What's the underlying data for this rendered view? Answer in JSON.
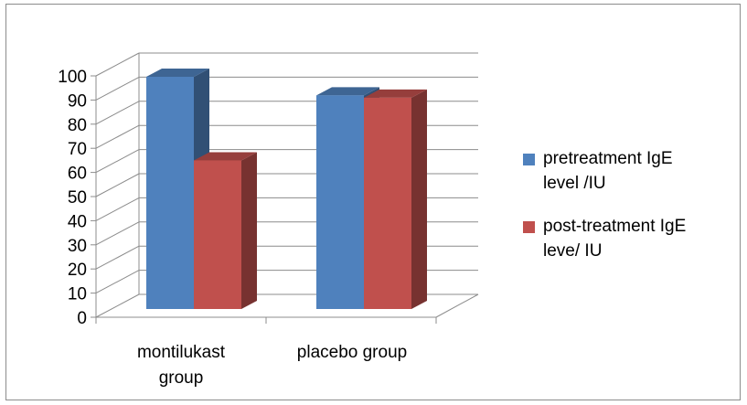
{
  "chart_data": {
    "type": "bar",
    "style": "3d-clustered-column",
    "categories": [
      [
        "montilukast",
        "group"
      ],
      [
        "placebo group"
      ]
    ],
    "series": [
      {
        "name": [
          "pretreatment IgE",
          "level /IU"
        ],
        "color": "#4F81BD",
        "values": [
          100,
          92
        ]
      },
      {
        "name": [
          "post-treatment IgE",
          "leve/ IU"
        ],
        "color": "#C0504D",
        "values": [
          64,
          91
        ]
      }
    ],
    "ylim": [
      0,
      100
    ],
    "yticks": [
      0,
      10,
      20,
      30,
      40,
      50,
      60,
      70,
      80,
      90,
      100
    ],
    "grid": true,
    "legend_position": "right",
    "title": "",
    "xlabel": "",
    "ylabel": ""
  }
}
